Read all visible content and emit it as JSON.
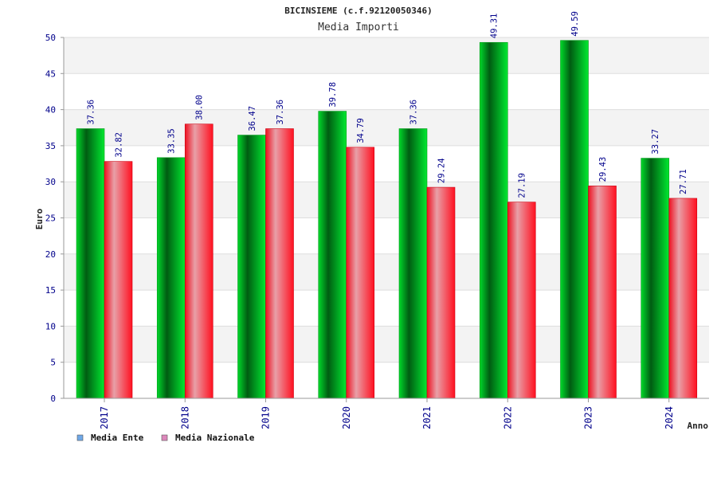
{
  "chart_data": {
    "type": "bar",
    "title": "BICINSIEME (c.f.92120050346)",
    "subtitle": "Media Importi",
    "xlabel": "Anno",
    "ylabel": "Euro",
    "ylim": [
      0,
      50
    ],
    "yticks": [
      0,
      5,
      10,
      15,
      20,
      25,
      30,
      35,
      40,
      45,
      50
    ],
    "grid": true,
    "legend_position": "bottom-left",
    "categories": [
      "2017",
      "2018",
      "2019",
      "2020",
      "2021",
      "2022",
      "2023",
      "2024"
    ],
    "series": [
      {
        "name": "Media Ente",
        "color": "#00cc22",
        "legend_color": "#6fa8e8",
        "values": [
          37.36,
          33.35,
          36.47,
          39.78,
          37.36,
          49.31,
          49.59,
          33.27
        ],
        "labels": [
          "37.36",
          "33.35",
          "36.47",
          "39.78",
          "37.36",
          "49.31",
          "49.59",
          "33.27"
        ]
      },
      {
        "name": "Media Nazionale",
        "color": "#ee1122",
        "legend_color": "#dd88bb",
        "values": [
          32.82,
          38.0,
          37.36,
          34.79,
          29.24,
          27.19,
          29.43,
          27.71
        ],
        "labels": [
          "32.82",
          "38.00",
          "37.36",
          "34.79",
          "29.24",
          "27.19",
          "29.43",
          "27.71"
        ]
      }
    ]
  }
}
